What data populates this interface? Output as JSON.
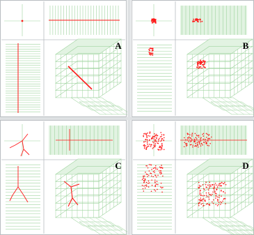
{
  "panels": [
    {
      "key": "A",
      "label": "A",
      "pattern": "line"
    },
    {
      "key": "B",
      "label": "B",
      "pattern": "cluster"
    },
    {
      "key": "C",
      "label": "C",
      "pattern": "tree"
    },
    {
      "key": "D",
      "label": "D",
      "pattern": "scatter"
    }
  ],
  "colors": {
    "background": "#ffffff",
    "frame": "#b8bcc0",
    "grid": "#9ed39e",
    "grid_fill": "#e2f3e2",
    "points": "#ff1a1a"
  }
}
